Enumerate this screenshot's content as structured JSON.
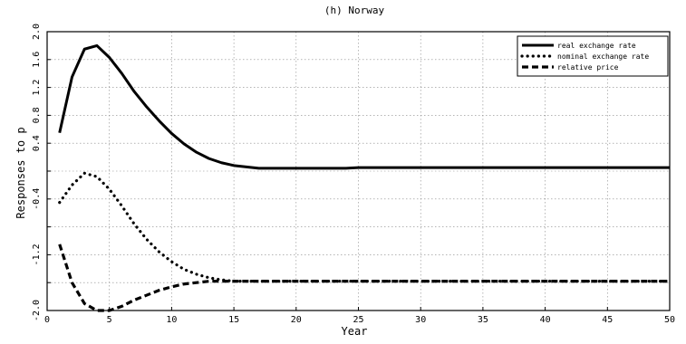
{
  "chart_data": {
    "type": "line",
    "title": "(h) Norway",
    "xlabel": "Year",
    "ylabel": "Responses to p",
    "xlim": [
      0,
      50
    ],
    "ylim": [
      -2.0,
      2.0
    ],
    "xticks": [
      0,
      5,
      10,
      15,
      20,
      25,
      30,
      35,
      40,
      45,
      50
    ],
    "yticks": [
      -2.0,
      -1.6,
      -1.2,
      -0.8,
      -0.4,
      0,
      0.4,
      0.8,
      1.2,
      1.6,
      2.0
    ],
    "ytick_labels": [
      "-2.0",
      "",
      "-1.2",
      "",
      "-0.4",
      "",
      "0.4",
      "0.8",
      "1.2",
      "1.6",
      "2.0"
    ],
    "grid": true,
    "legend_position": "top-right",
    "x": [
      1,
      2,
      3,
      4,
      5,
      6,
      7,
      8,
      9,
      10,
      11,
      12,
      13,
      14,
      15,
      16,
      17,
      18,
      19,
      20,
      21,
      22,
      23,
      24,
      25,
      26,
      27,
      28,
      29,
      30,
      31,
      32,
      33,
      34,
      35,
      36,
      37,
      38,
      39,
      40,
      41,
      42,
      43,
      44,
      45,
      46,
      47,
      48,
      49,
      50
    ],
    "series": [
      {
        "name": "real exchange rate",
        "style": "solid",
        "values": [
          0.55,
          1.35,
          1.75,
          1.8,
          1.63,
          1.4,
          1.14,
          0.92,
          0.72,
          0.54,
          0.39,
          0.27,
          0.18,
          0.12,
          0.08,
          0.06,
          0.04,
          0.04,
          0.04,
          0.04,
          0.04,
          0.04,
          0.04,
          0.04,
          0.05,
          0.05,
          0.05,
          0.05,
          0.05,
          0.05,
          0.05,
          0.05,
          0.05,
          0.05,
          0.05,
          0.05,
          0.05,
          0.05,
          0.05,
          0.05,
          0.05,
          0.05,
          0.05,
          0.05,
          0.05,
          0.05,
          0.05,
          0.05,
          0.05,
          0.05
        ]
      },
      {
        "name": "nominal exchange rate",
        "style": "dotted",
        "values": [
          -0.45,
          -0.2,
          -0.03,
          -0.08,
          -0.26,
          -0.5,
          -0.76,
          -0.98,
          -1.16,
          -1.3,
          -1.41,
          -1.48,
          -1.53,
          -1.56,
          -1.58,
          -1.58,
          -1.58,
          -1.58,
          -1.58,
          -1.58,
          -1.58,
          -1.58,
          -1.58,
          -1.58,
          -1.58,
          -1.58,
          -1.58,
          -1.58,
          -1.58,
          -1.58,
          -1.58,
          -1.58,
          -1.58,
          -1.58,
          -1.58,
          -1.58,
          -1.58,
          -1.58,
          -1.58,
          -1.58,
          -1.58,
          -1.58,
          -1.58,
          -1.58,
          -1.58,
          -1.58,
          -1.58,
          -1.58,
          -1.58,
          -1.58
        ]
      },
      {
        "name": "relative price",
        "style": "dashed",
        "values": [
          -1.05,
          -1.6,
          -1.9,
          -2.0,
          -2.0,
          -1.94,
          -1.85,
          -1.78,
          -1.71,
          -1.66,
          -1.62,
          -1.6,
          -1.58,
          -1.58,
          -1.58,
          -1.58,
          -1.58,
          -1.58,
          -1.58,
          -1.58,
          -1.58,
          -1.58,
          -1.58,
          -1.58,
          -1.58,
          -1.58,
          -1.58,
          -1.58,
          -1.58,
          -1.58,
          -1.58,
          -1.58,
          -1.58,
          -1.58,
          -1.58,
          -1.58,
          -1.58,
          -1.58,
          -1.58,
          -1.58,
          -1.58,
          -1.58,
          -1.58,
          -1.58,
          -1.58,
          -1.58,
          -1.58,
          -1.58,
          -1.58,
          -1.58
        ]
      }
    ]
  }
}
